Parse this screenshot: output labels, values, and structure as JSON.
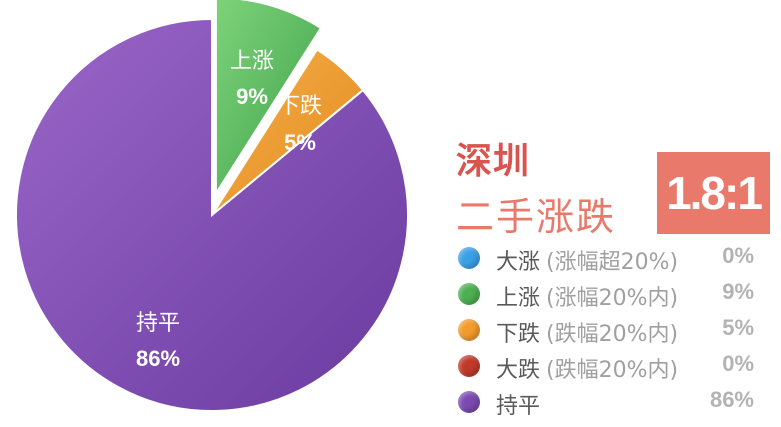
{
  "chart_data": {
    "type": "pie",
    "slices": [
      {
        "label": "大涨",
        "note": "(涨幅超20%)",
        "value": 0,
        "pct_label": "0%",
        "color": "#3aa0e6"
      },
      {
        "label": "上涨",
        "note": "(涨幅20%内)",
        "value": 9,
        "pct_label": "9%",
        "color": "#4caf50"
      },
      {
        "label": "下跌",
        "note": "(跌幅20%内)",
        "value": 5,
        "pct_label": "5%",
        "color": "#f39a2b"
      },
      {
        "label": "大跌",
        "note": "(跌幅20%内)",
        "value": 0,
        "pct_label": "0%",
        "color": "#c0392b"
      },
      {
        "label": "持平",
        "note": "",
        "value": 86,
        "pct_label": "86%",
        "color": "#7b4ab0"
      }
    ],
    "slice_labels": [
      {
        "name": "上涨",
        "pct": "9%"
      },
      {
        "name": "下跌",
        "pct": "5%"
      },
      {
        "name": "持平",
        "pct": "86%"
      }
    ]
  },
  "header": {
    "city": "深圳",
    "subtitle": "二手涨跌",
    "ratio": "1.8:1"
  }
}
